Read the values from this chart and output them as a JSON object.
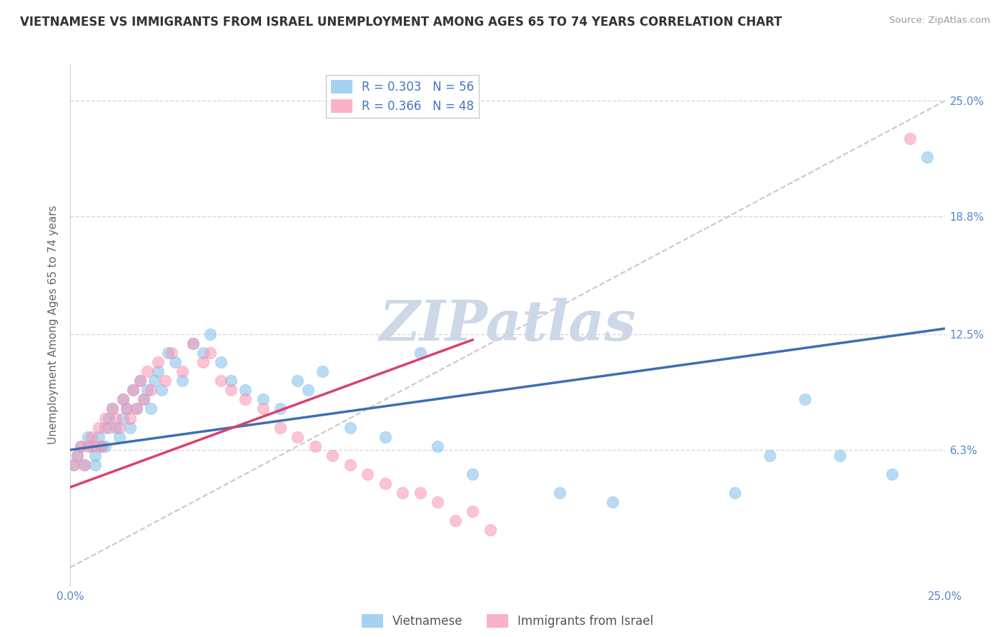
{
  "title": "VIETNAMESE VS IMMIGRANTS FROM ISRAEL UNEMPLOYMENT AMONG AGES 65 TO 74 YEARS CORRELATION CHART",
  "source": "Source: ZipAtlas.com",
  "ylabel": "Unemployment Among Ages 65 to 74 years",
  "xlim": [
    0.0,
    0.25
  ],
  "ylim": [
    -0.01,
    0.27
  ],
  "right_ytick_labels": [
    "25.0%",
    "18.8%",
    "12.5%",
    "6.3%"
  ],
  "right_ytick_vals": [
    0.25,
    0.188,
    0.125,
    0.063
  ],
  "xtick_labels": [
    "0.0%",
    "25.0%"
  ],
  "xticks": [
    0.0,
    0.25
  ],
  "legend_entry1": "R = 0.303   N = 56",
  "legend_entry2": "R = 0.366   N = 48",
  "series1_label": "Vietnamese",
  "series2_label": "Immigrants from Israel",
  "series1_color": "#7fbfea",
  "series2_color": "#f892b0",
  "trend1_color": "#3d6eb5",
  "trend2_color": "#d94070",
  "dashed_line_color": "#c8c8c8",
  "watermark_color": "#ccd8e8",
  "background_color": "#ffffff",
  "grid_color": "#d8d8d8",
  "title_color": "#333333",
  "axis_label_color": "#4472c4",
  "tick_label_color": "#5588cc",
  "trend1_x0": 0.0,
  "trend1_y0": 0.063,
  "trend1_x1": 0.25,
  "trend1_y1": 0.128,
  "trend2_x0": 0.0,
  "trend2_y0": 0.043,
  "trend2_x1": 0.115,
  "trend2_y1": 0.122,
  "scatter1_x": [
    0.001,
    0.002,
    0.003,
    0.004,
    0.005,
    0.006,
    0.007,
    0.007,
    0.008,
    0.009,
    0.01,
    0.01,
    0.011,
    0.012,
    0.013,
    0.014,
    0.015,
    0.015,
    0.016,
    0.017,
    0.018,
    0.019,
    0.02,
    0.021,
    0.022,
    0.023,
    0.024,
    0.025,
    0.026,
    0.028,
    0.03,
    0.032,
    0.035,
    0.038,
    0.04,
    0.043,
    0.046,
    0.05,
    0.055,
    0.06,
    0.065,
    0.068,
    0.072,
    0.08,
    0.09,
    0.1,
    0.105,
    0.115,
    0.14,
    0.155,
    0.19,
    0.2,
    0.21,
    0.22,
    0.235,
    0.245
  ],
  "scatter1_y": [
    0.055,
    0.06,
    0.065,
    0.055,
    0.07,
    0.065,
    0.06,
    0.055,
    0.07,
    0.065,
    0.075,
    0.065,
    0.08,
    0.085,
    0.075,
    0.07,
    0.09,
    0.08,
    0.085,
    0.075,
    0.095,
    0.085,
    0.1,
    0.09,
    0.095,
    0.085,
    0.1,
    0.105,
    0.095,
    0.115,
    0.11,
    0.1,
    0.12,
    0.115,
    0.125,
    0.11,
    0.1,
    0.095,
    0.09,
    0.085,
    0.1,
    0.095,
    0.105,
    0.075,
    0.07,
    0.115,
    0.065,
    0.05,
    0.04,
    0.035,
    0.04,
    0.06,
    0.09,
    0.06,
    0.05,
    0.22
  ],
  "scatter2_x": [
    0.001,
    0.002,
    0.003,
    0.004,
    0.005,
    0.006,
    0.007,
    0.008,
    0.009,
    0.01,
    0.011,
    0.012,
    0.013,
    0.014,
    0.015,
    0.016,
    0.017,
    0.018,
    0.019,
    0.02,
    0.021,
    0.022,
    0.023,
    0.025,
    0.027,
    0.029,
    0.032,
    0.035,
    0.038,
    0.04,
    0.043,
    0.046,
    0.05,
    0.055,
    0.06,
    0.065,
    0.07,
    0.075,
    0.08,
    0.085,
    0.09,
    0.095,
    0.1,
    0.105,
    0.11,
    0.115,
    0.12,
    0.24
  ],
  "scatter2_y": [
    0.055,
    0.06,
    0.065,
    0.055,
    0.065,
    0.07,
    0.065,
    0.075,
    0.065,
    0.08,
    0.075,
    0.085,
    0.08,
    0.075,
    0.09,
    0.085,
    0.08,
    0.095,
    0.085,
    0.1,
    0.09,
    0.105,
    0.095,
    0.11,
    0.1,
    0.115,
    0.105,
    0.12,
    0.11,
    0.115,
    0.1,
    0.095,
    0.09,
    0.085,
    0.075,
    0.07,
    0.065,
    0.06,
    0.055,
    0.05,
    0.045,
    0.04,
    0.04,
    0.035,
    0.025,
    0.03,
    0.02,
    0.23
  ]
}
